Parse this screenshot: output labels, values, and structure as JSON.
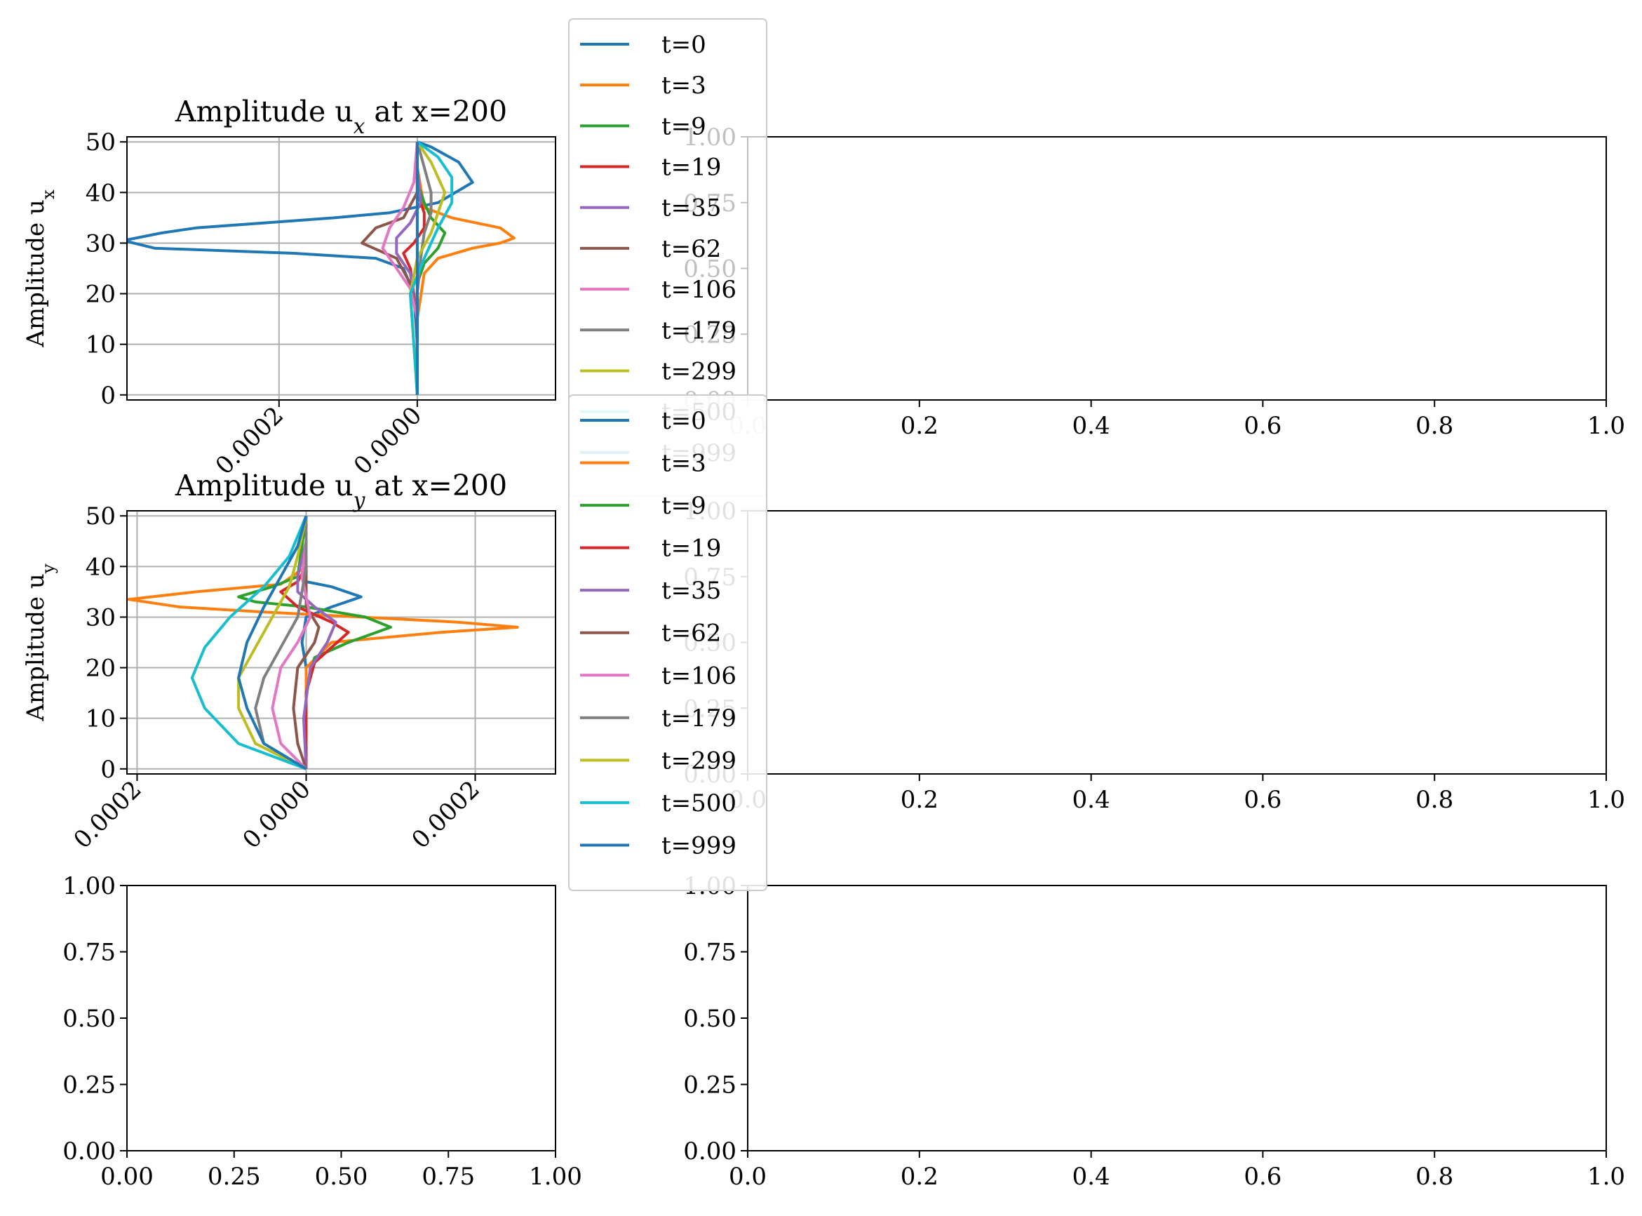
{
  "figure": {
    "background": "#ffffff"
  },
  "chart_data": [
    {
      "id": "ux",
      "type": "line",
      "title": "Amplitude u",
      "title_sub": "x",
      "title_suffix": " at x=200",
      "xlabel": "",
      "ylabel": "Amplitude u",
      "ylabel_sub": "x",
      "xlim": [
        -0.00042,
        0.0002
      ],
      "ylim": [
        -1,
        51
      ],
      "grid": true,
      "x_ticks": [
        -0.0002,
        0.0
      ],
      "x_tick_labels": [
        "0.0002",
        "0.0000"
      ],
      "y_ticks": [
        0,
        10,
        20,
        30,
        40,
        50
      ],
      "y_tick_labels": [
        "0",
        "10",
        "20",
        "30",
        "40",
        "50"
      ],
      "legend_location": "outside-right",
      "series": [
        {
          "name": "t=0",
          "color": "#1f77b4",
          "points": [
            [
              0.0,
              0
            ],
            [
              0.0,
              10
            ],
            [
              -5e-06,
              20
            ],
            [
              -2e-05,
              25
            ],
            [
              -6e-05,
              27
            ],
            [
              -0.00018,
              28
            ],
            [
              -0.00038,
              29
            ],
            [
              -0.000425,
              30.5
            ],
            [
              -0.00037,
              32
            ],
            [
              -0.00032,
              33
            ],
            [
              -0.00012,
              35
            ],
            [
              -4e-05,
              36
            ],
            [
              3e-05,
              38
            ],
            [
              8e-05,
              42
            ],
            [
              6e-05,
              46
            ],
            [
              2e-05,
              49
            ],
            [
              0.0,
              50
            ]
          ]
        },
        {
          "name": "t=3",
          "color": "#ff7f0e",
          "points": [
            [
              0.0,
              0
            ],
            [
              0.0,
              15
            ],
            [
              1e-05,
              24
            ],
            [
              3e-05,
              27
            ],
            [
              8e-05,
              29
            ],
            [
              0.00012,
              30
            ],
            [
              0.00014,
              31
            ],
            [
              0.00012,
              33
            ],
            [
              5e-05,
              35
            ],
            [
              1e-05,
              37
            ],
            [
              0.0,
              45
            ],
            [
              0.0,
              50
            ]
          ]
        },
        {
          "name": "t=9",
          "color": "#2ca02c",
          "points": [
            [
              0.0,
              0
            ],
            [
              0.0,
              15
            ],
            [
              0.0,
              22
            ],
            [
              1e-05,
              26
            ],
            [
              3e-05,
              29
            ],
            [
              4e-05,
              32
            ],
            [
              2e-05,
              35
            ],
            [
              1e-05,
              38
            ],
            [
              0.0,
              42
            ],
            [
              0.0,
              50
            ]
          ]
        },
        {
          "name": "t=19",
          "color": "#d62728",
          "points": [
            [
              0.0,
              0
            ],
            [
              0.0,
              15
            ],
            [
              -1e-05,
              25
            ],
            [
              -2e-05,
              28
            ],
            [
              -5e-06,
              30
            ],
            [
              1e-05,
              33
            ],
            [
              1e-05,
              36
            ],
            [
              0.0,
              40
            ],
            [
              0.0,
              50
            ]
          ]
        },
        {
          "name": "t=35",
          "color": "#9467bd",
          "points": [
            [
              0.0,
              0
            ],
            [
              0.0,
              15
            ],
            [
              -1e-05,
              24
            ],
            [
              -3e-05,
              28
            ],
            [
              -3e-05,
              31
            ],
            [
              -1e-05,
              34
            ],
            [
              5e-06,
              38
            ],
            [
              0.0,
              45
            ],
            [
              0.0,
              50
            ]
          ]
        },
        {
          "name": "t=62",
          "color": "#8c564b",
          "points": [
            [
              0.0,
              0
            ],
            [
              0.0,
              15
            ],
            [
              -1e-05,
              22
            ],
            [
              -3e-05,
              27
            ],
            [
              -8e-05,
              30
            ],
            [
              -6e-05,
              33
            ],
            [
              -2e-05,
              35
            ],
            [
              0.0,
              40
            ],
            [
              0.0,
              50
            ]
          ]
        },
        {
          "name": "t=106",
          "color": "#e377c2",
          "points": [
            [
              0.0,
              0
            ],
            [
              0.0,
              15
            ],
            [
              -1e-05,
              21
            ],
            [
              -3e-05,
              25
            ],
            [
              -5e-05,
              29
            ],
            [
              -4e-05,
              33
            ],
            [
              -2e-05,
              37
            ],
            [
              -5e-06,
              42
            ],
            [
              0.0,
              50
            ]
          ]
        },
        {
          "name": "t=179",
          "color": "#7f7f7f",
          "points": [
            [
              0.0,
              0
            ],
            [
              0.0,
              10
            ],
            [
              0.0,
              20
            ],
            [
              5e-06,
              27
            ],
            [
              1e-05,
              32
            ],
            [
              2e-05,
              36
            ],
            [
              2e-05,
              40
            ],
            [
              1e-05,
              45
            ],
            [
              0.0,
              50
            ]
          ]
        },
        {
          "name": "t=299",
          "color": "#bcbd22",
          "points": [
            [
              0.0,
              0
            ],
            [
              -5e-06,
              10
            ],
            [
              -1e-05,
              20
            ],
            [
              0.0,
              27
            ],
            [
              2e-05,
              32
            ],
            [
              3e-05,
              36
            ],
            [
              4e-05,
              40
            ],
            [
              2e-05,
              46
            ],
            [
              0.0,
              50
            ]
          ]
        },
        {
          "name": "t=500",
          "color": "#17becf",
          "points": [
            [
              0.0,
              0
            ],
            [
              -5e-06,
              10
            ],
            [
              -1e-05,
              20
            ],
            [
              1e-05,
              27
            ],
            [
              3e-05,
              33
            ],
            [
              5e-05,
              38
            ],
            [
              5e-05,
              43
            ],
            [
              3e-05,
              47
            ],
            [
              0.0,
              50
            ]
          ]
        },
        {
          "name": "t=999",
          "color": "#1f77b4",
          "points": [
            [
              0.0,
              0
            ],
            [
              0.0,
              50
            ]
          ]
        }
      ]
    },
    {
      "id": "uy",
      "type": "line",
      "title": "Amplitude u",
      "title_sub": "y",
      "title_suffix": " at x=200",
      "xlabel": "",
      "ylabel": "Amplitude u",
      "ylabel_sub": "y",
      "xlim": [
        -0.000212,
        0.000295
      ],
      "ylim": [
        -1,
        51
      ],
      "grid": true,
      "x_ticks": [
        -0.0002,
        0.0,
        0.0002
      ],
      "x_tick_labels": [
        "0.0002",
        "0.0000",
        "0.0002"
      ],
      "y_ticks": [
        0,
        10,
        20,
        30,
        40,
        50
      ],
      "y_tick_labels": [
        "0",
        "10",
        "20",
        "30",
        "40",
        "50"
      ],
      "legend_location": "outside-right",
      "series": [
        {
          "name": "t=0",
          "color": "#1f77b4",
          "points": [
            [
              0.0,
              0
            ],
            [
              0.0,
              10
            ],
            [
              0.0,
              20
            ],
            [
              -5e-06,
              25
            ],
            [
              0.0,
              30
            ],
            [
              3e-05,
              32
            ],
            [
              6.5e-05,
              34
            ],
            [
              3e-05,
              36
            ],
            [
              0.0,
              37
            ],
            [
              0.0,
              45
            ],
            [
              0.0,
              50
            ]
          ]
        },
        {
          "name": "t=3",
          "color": "#ff7f0e",
          "points": [
            [
              0.0,
              0
            ],
            [
              0.0,
              20
            ],
            [
              3e-05,
              25
            ],
            [
              0.00016,
              27
            ],
            [
              0.00025,
              28
            ],
            [
              0.00018,
              29
            ],
            [
              -5e-05,
              31
            ],
            [
              -0.00015,
              32
            ],
            [
              -0.00021,
              33.5
            ],
            [
              -0.00013,
              35
            ],
            [
              -3e-05,
              36.5
            ],
            [
              0.0,
              40
            ],
            [
              0.0,
              50
            ]
          ]
        },
        {
          "name": "t=9",
          "color": "#2ca02c",
          "points": [
            [
              0.0,
              0
            ],
            [
              0.0,
              15
            ],
            [
              1e-05,
              22
            ],
            [
              5e-05,
              25
            ],
            [
              0.0001,
              28
            ],
            [
              7e-05,
              30
            ],
            [
              0.0,
              32
            ],
            [
              -6e-05,
              33
            ],
            [
              -8e-05,
              34
            ],
            [
              -4e-05,
              36
            ],
            [
              -1e-05,
              38
            ],
            [
              0.0,
              50
            ]
          ]
        },
        {
          "name": "t=19",
          "color": "#d62728",
          "points": [
            [
              0.0,
              0
            ],
            [
              0.0,
              15
            ],
            [
              1e-05,
              21
            ],
            [
              3e-05,
              24
            ],
            [
              5e-05,
              27
            ],
            [
              3e-05,
              29
            ],
            [
              -1e-05,
              32
            ],
            [
              -3e-05,
              35
            ],
            [
              -1e-05,
              37
            ],
            [
              0.0,
              40
            ],
            [
              0.0,
              50
            ]
          ]
        },
        {
          "name": "t=35",
          "color": "#9467bd",
          "points": [
            [
              0.0,
              0
            ],
            [
              -3e-06,
              10
            ],
            [
              5e-06,
              20
            ],
            [
              2.5e-05,
              25
            ],
            [
              3.5e-05,
              29
            ],
            [
              1e-05,
              32
            ],
            [
              -1e-05,
              35
            ],
            [
              -1e-05,
              38
            ],
            [
              0.0,
              45
            ],
            [
              0.0,
              50
            ]
          ]
        },
        {
          "name": "t=62",
          "color": "#8c564b",
          "points": [
            [
              0.0,
              0
            ],
            [
              -1e-05,
              5
            ],
            [
              -1.5e-05,
              12
            ],
            [
              -1e-05,
              20
            ],
            [
              1e-05,
              25
            ],
            [
              1.5e-05,
              28
            ],
            [
              0.0,
              32
            ],
            [
              0.0,
              40
            ],
            [
              0.0,
              50
            ]
          ]
        },
        {
          "name": "t=106",
          "color": "#e377c2",
          "points": [
            [
              0.0,
              0
            ],
            [
              -3e-05,
              5
            ],
            [
              -4e-05,
              12
            ],
            [
              -3e-05,
              20
            ],
            [
              -1e-05,
              25
            ],
            [
              5e-06,
              30
            ],
            [
              0.0,
              34
            ],
            [
              -5e-06,
              38
            ],
            [
              0.0,
              45
            ],
            [
              0.0,
              50
            ]
          ]
        },
        {
          "name": "t=179",
          "color": "#7f7f7f",
          "points": [
            [
              0.0,
              0
            ],
            [
              -5e-05,
              5
            ],
            [
              -6e-05,
              12
            ],
            [
              -5e-05,
              18
            ],
            [
              -3e-05,
              24
            ],
            [
              -1e-05,
              30
            ],
            [
              -5e-06,
              35
            ],
            [
              0.0,
              40
            ],
            [
              0.0,
              50
            ]
          ]
        },
        {
          "name": "t=299",
          "color": "#bcbd22",
          "points": [
            [
              0.0,
              0
            ],
            [
              -6e-05,
              5
            ],
            [
              -8e-05,
              12
            ],
            [
              -8e-05,
              18
            ],
            [
              -6e-05,
              24
            ],
            [
              -4e-05,
              30
            ],
            [
              -2e-05,
              36
            ],
            [
              -1e-05,
              42
            ],
            [
              0.0,
              50
            ]
          ]
        },
        {
          "name": "t=500",
          "color": "#17becf",
          "points": [
            [
              0.0,
              0
            ],
            [
              -8e-05,
              5
            ],
            [
              -0.00012,
              12
            ],
            [
              -0.000135,
              18
            ],
            [
              -0.00012,
              24
            ],
            [
              -9e-05,
              30
            ],
            [
              -5e-05,
              36
            ],
            [
              -2e-05,
              42
            ],
            [
              0.0,
              50
            ]
          ]
        },
        {
          "name": "t=999",
          "color": "#1f77b4",
          "points": [
            [
              0.0,
              0
            ],
            [
              -5e-05,
              5
            ],
            [
              -7e-05,
              12
            ],
            [
              -8e-05,
              18
            ],
            [
              -7e-05,
              25
            ],
            [
              -5e-05,
              32
            ],
            [
              -3e-05,
              38
            ],
            [
              -1e-05,
              44
            ],
            [
              0.0,
              50
            ]
          ]
        }
      ]
    },
    {
      "id": "empty-top-right",
      "type": "line",
      "series": [],
      "x_tick_labels": [
        "0.0",
        "0.2",
        "0.4",
        "0.6",
        "0.8",
        "1.0"
      ],
      "y_tick_labels": [
        "0.00",
        "0.25",
        "0.50",
        "0.75",
        "1.00"
      ]
    },
    {
      "id": "empty-mid-right",
      "type": "line",
      "series": [],
      "x_tick_labels": [
        "0.0",
        "0.2",
        "0.4",
        "0.6",
        "0.8",
        "1.0"
      ],
      "y_tick_labels": [
        "0.00",
        "0.25",
        "0.50",
        "0.75",
        "1.00"
      ]
    },
    {
      "id": "empty-bottom-left",
      "type": "line",
      "series": [],
      "x_tick_labels": [
        "0.00",
        "0.25",
        "0.50",
        "0.75",
        "1.00"
      ],
      "y_tick_labels": [
        "0.00",
        "0.25",
        "0.50",
        "0.75",
        "1.00"
      ]
    },
    {
      "id": "empty-bottom-right",
      "type": "line",
      "series": [],
      "x_tick_labels": [
        "0.0",
        "0.2",
        "0.4",
        "0.6",
        "0.8",
        "1.0"
      ],
      "y_tick_labels": [
        "0.00",
        "0.25",
        "0.50",
        "0.75",
        "1.00"
      ]
    }
  ]
}
